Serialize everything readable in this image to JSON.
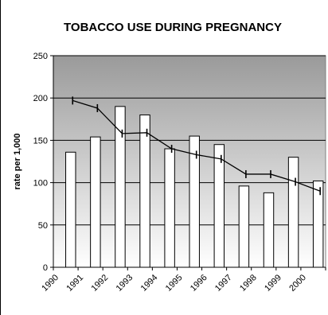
{
  "chart_data": {
    "type": "bar",
    "title": "TOBACCO USE DURING PREGNANCY",
    "ylabel": "rate per 1,000",
    "xlabel": "",
    "categories": [
      "1990",
      "1991",
      "1992",
      "1993",
      "1994",
      "1995",
      "1996",
      "1997",
      "1998",
      "1999",
      "2000"
    ],
    "ylim": [
      0,
      250
    ],
    "yticks": [
      0,
      50,
      100,
      150,
      200,
      250
    ],
    "grid": true,
    "legend": "none",
    "series": [
      {
        "type": "bar",
        "values": [
          136,
          154,
          190,
          180,
          140,
          155,
          145,
          96,
          88,
          130,
          102
        ],
        "color": "#ffffff"
      },
      {
        "type": "line",
        "values": [
          197,
          188,
          158,
          159,
          140,
          133,
          128,
          110,
          110,
          101,
          90
        ],
        "color": "#000000"
      }
    ],
    "plot_background": "gradient-gray"
  }
}
